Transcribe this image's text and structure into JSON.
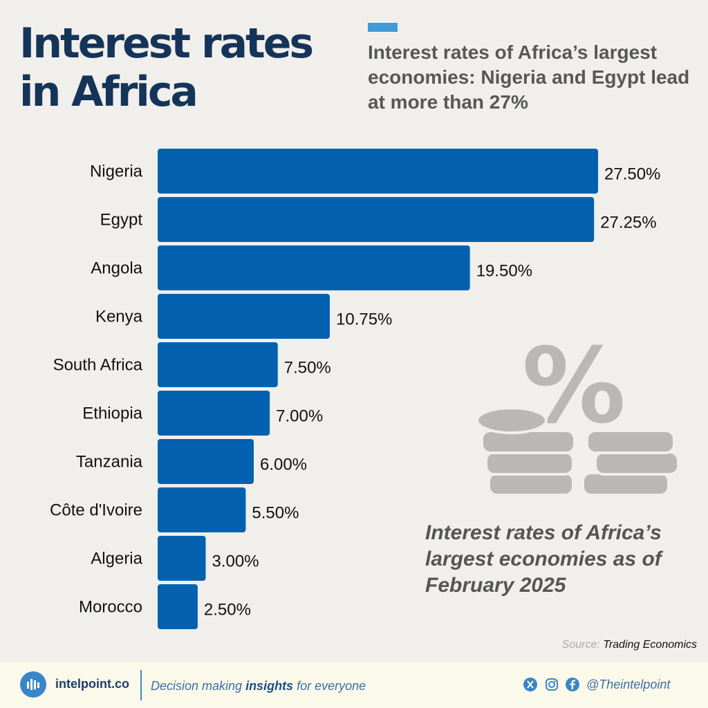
{
  "title": "Interest rates in Africa",
  "subtitle": "Interest rates of Africa’s largest economies: Nigeria and Egypt lead at more than 27%",
  "note": "Interest rates of Africa’s largest economies as of February 2025",
  "source": {
    "prefix": "Source:",
    "name": "Trading Economics"
  },
  "footer": {
    "brand": "intelpoint.co",
    "tagline_before": "Decision making ",
    "tagline_bold": "insights",
    "tagline_after": " for everyone",
    "handle": "@Theintelpoint"
  },
  "colors": {
    "bar": "#0361b0",
    "title": "#153459",
    "accent": "#3e9ad8",
    "icon": "#b9b8b5"
  },
  "icons": [
    "percent-icon",
    "coins-icon",
    "intelpoint-logo-icon",
    "x-icon",
    "instagram-icon",
    "facebook-icon"
  ],
  "chart_data": {
    "type": "bar",
    "orientation": "horizontal",
    "categories": [
      "Nigeria",
      "Egypt",
      "Angola",
      "Kenya",
      "South Africa",
      "Ethiopia",
      "Tanzania",
      "Côte d'Ivoire",
      "Algeria",
      "Morocco"
    ],
    "values": [
      27.5,
      27.25,
      19.5,
      10.75,
      7.5,
      7.0,
      6.0,
      5.5,
      3.0,
      2.5
    ],
    "value_labels": [
      "27.50%",
      "27.25%",
      "19.50%",
      "10.75%",
      "7.50%",
      "7.00%",
      "6.00%",
      "5.50%",
      "3.00%",
      "2.50%"
    ],
    "xlim": [
      0,
      27.5
    ],
    "grid": false,
    "legend": "none"
  }
}
